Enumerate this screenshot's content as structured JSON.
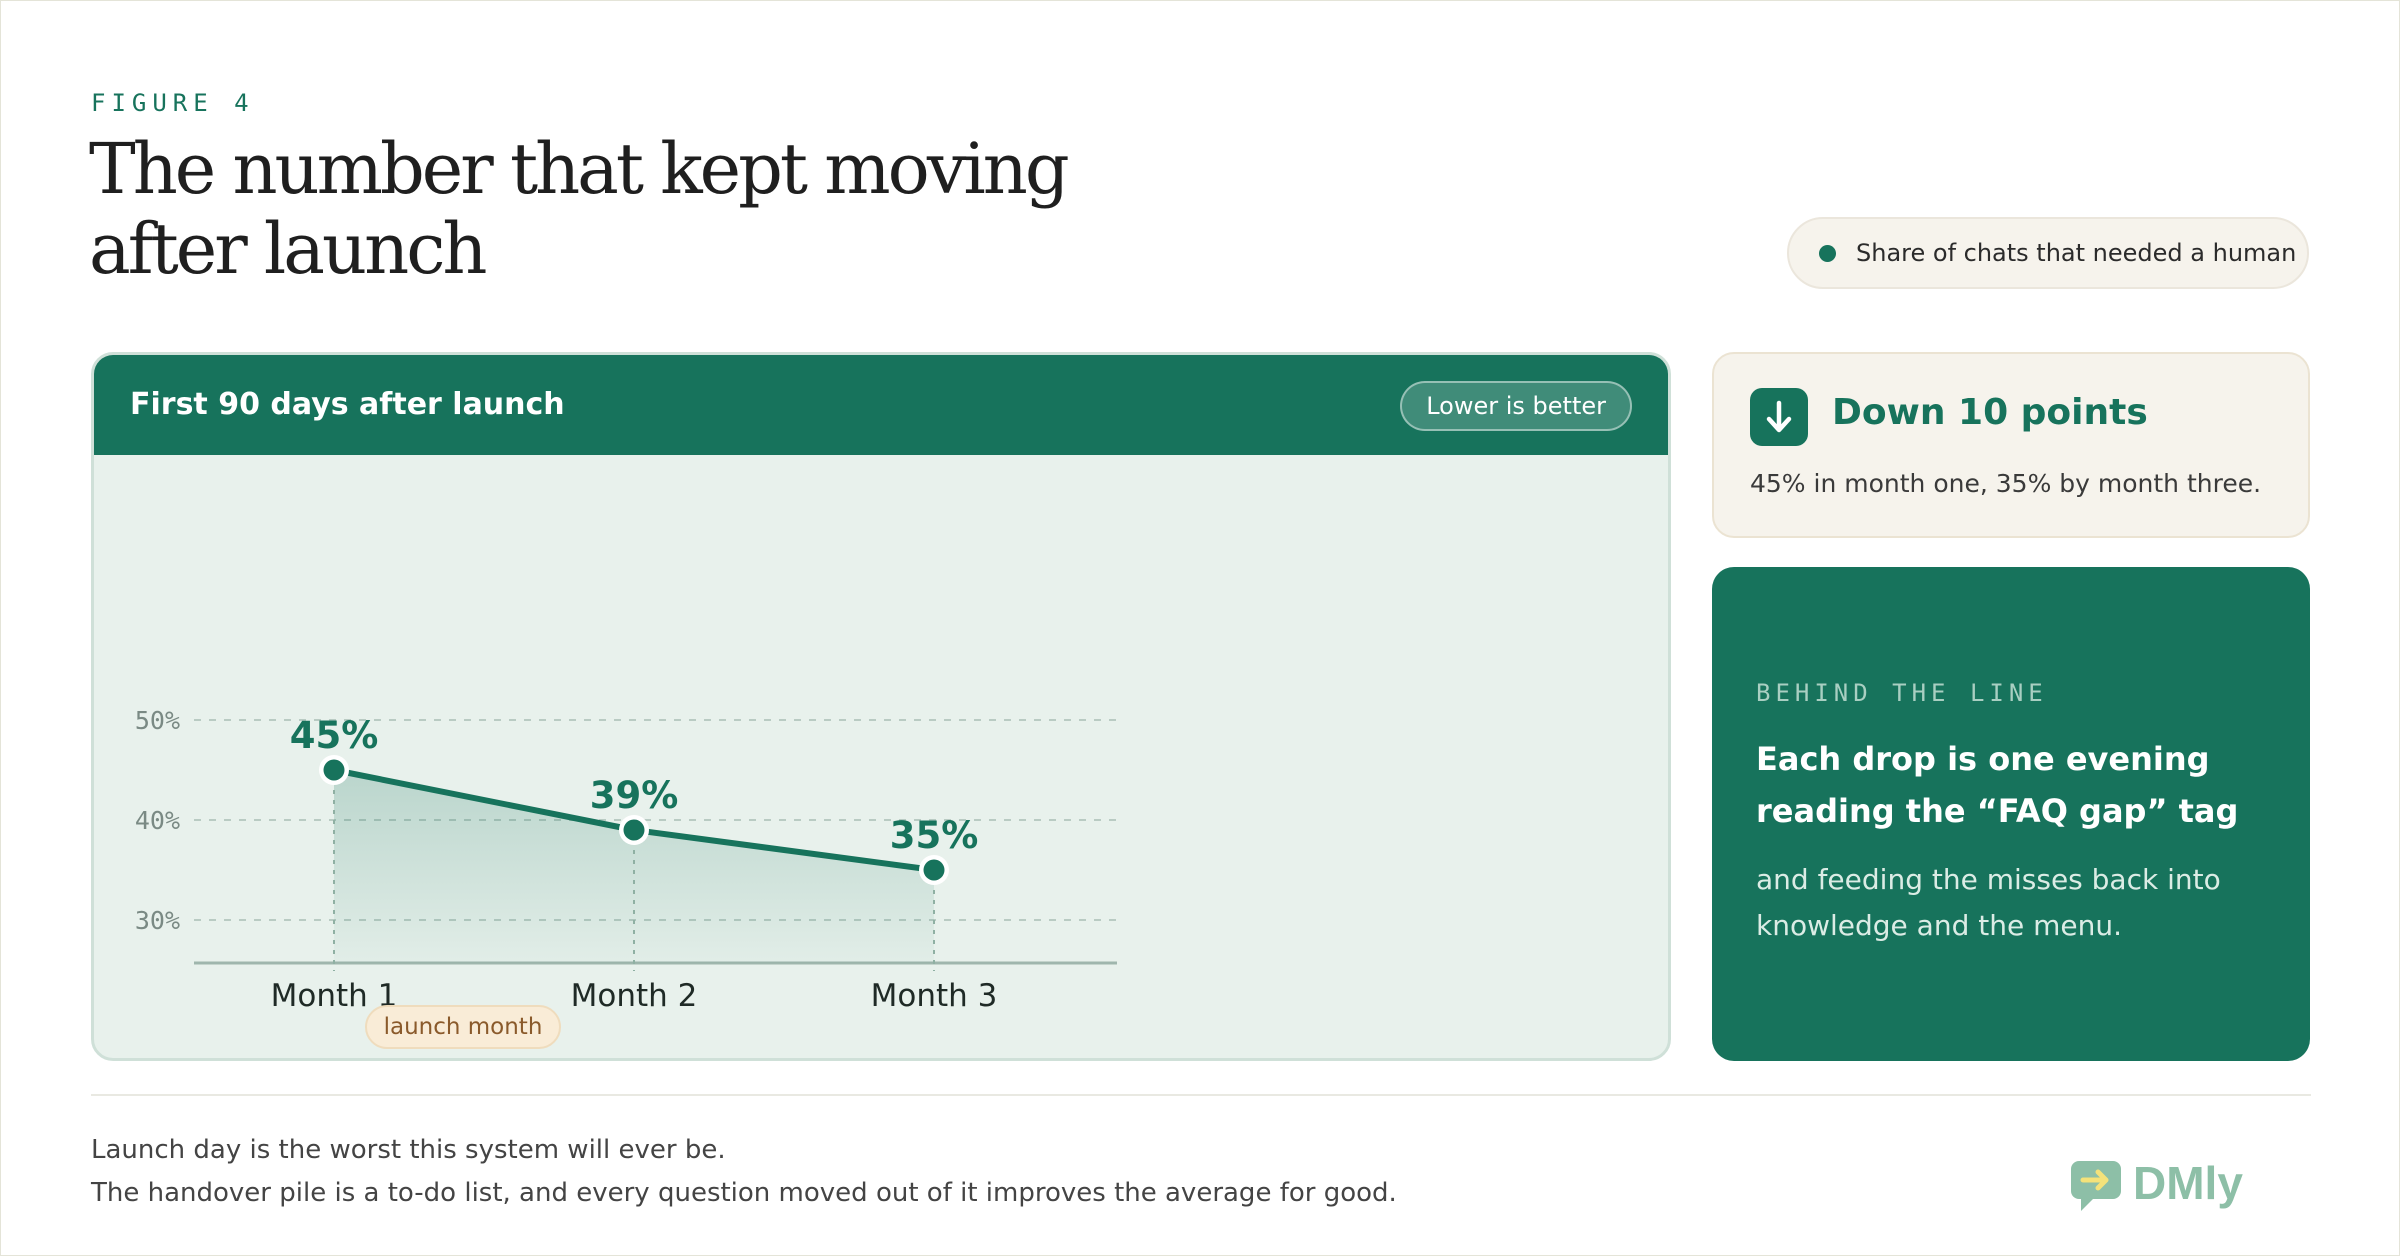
{
  "figure_label": "FIGURE 4",
  "title_line1": "The number that kept moving",
  "title_line2": "after launch",
  "legend": {
    "series_name": "Share of chats that needed a human",
    "color": "#17735c"
  },
  "chart_card": {
    "header_title": "First 90 days after launch",
    "badge": "Lower is better",
    "annotation": "launch month"
  },
  "chart_data": {
    "type": "line",
    "categories": [
      "Month 1",
      "Month 2",
      "Month 3"
    ],
    "series": [
      {
        "name": "Share of chats that needed a human",
        "values": [
          45,
          39,
          35
        ],
        "labels": [
          "45%",
          "39%",
          "35%"
        ]
      }
    ],
    "y_ticks": [
      30,
      40,
      50
    ],
    "y_tick_labels": [
      "30%",
      "40%",
      "50%"
    ],
    "ylim": [
      25.7,
      50
    ],
    "grid": true,
    "fill": "area",
    "annotations": [
      {
        "category": "Month 1",
        "text": "launch month"
      }
    ]
  },
  "stat": {
    "icon": "arrow-down-icon",
    "headline": "Down 10 points",
    "subtext": "45% in month one, 35% by month three."
  },
  "note": {
    "eyebrow": "BEHIND THE LINE",
    "title": "Each drop is one evening reading the “FAQ gap” tag",
    "body": "and feeding the misses back into knowledge and the menu."
  },
  "footer": {
    "line1": "Launch day is the worst this system will ever be.",
    "line2": "The handover pile is a to-do list, and every question moved out of it improves the average for good."
  },
  "logo": {
    "text": "DMly",
    "icon": "chat-bubble-arrow-icon",
    "color": "#8dbfa7"
  },
  "colors": {
    "accent": "#17735c",
    "panel": "#e8f1ec",
    "accent_light": "#a9cfc2"
  }
}
